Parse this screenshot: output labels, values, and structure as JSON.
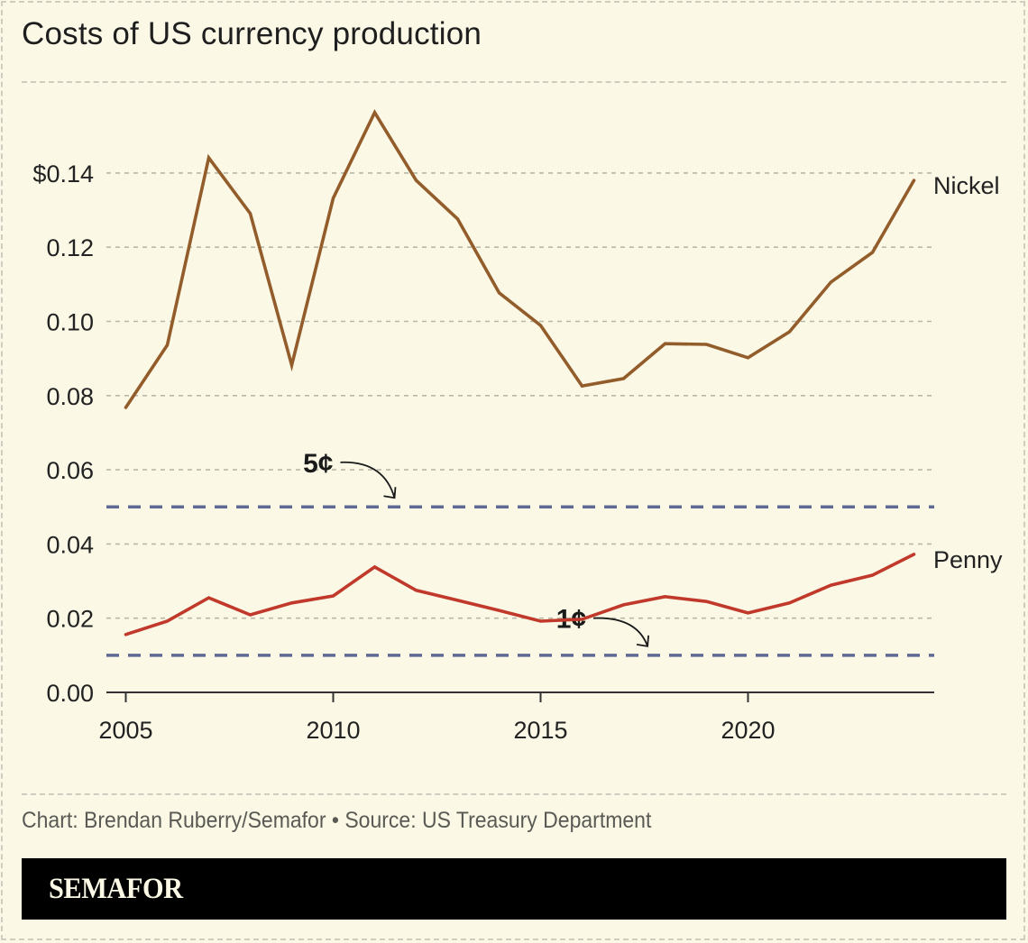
{
  "header": {
    "title": "Costs of US currency production"
  },
  "footer": {
    "credit": "Chart: Brendan Ruberry/Semafor • Source: US Treasury Department",
    "brand": "SEMAFOR"
  },
  "colors": {
    "background": "#fbf9e6",
    "nickel": "#935c2b",
    "penny": "#c0392b",
    "reference": "#5e6a94",
    "grid": "#b9b7a8",
    "axis": "#333333",
    "text": "#222222"
  },
  "chart_data": {
    "type": "line",
    "title": "Costs of US currency production",
    "xlabel": "",
    "ylabel": "",
    "x": [
      2005,
      2006,
      2007,
      2008,
      2009,
      2010,
      2011,
      2012,
      2013,
      2014,
      2015,
      2016,
      2017,
      2018,
      2019,
      2020,
      2021,
      2022,
      2023,
      2024
    ],
    "xlim": [
      2004.5,
      2024.5
    ],
    "ylim": [
      0,
      0.16
    ],
    "xticks": [
      2005,
      2010,
      2015,
      2020
    ],
    "xtick_labels": [
      "2005",
      "2010",
      "2015",
      "2020"
    ],
    "yticks": [
      0,
      0.02,
      0.04,
      0.06,
      0.08,
      0.1,
      0.12,
      0.14
    ],
    "ytick_labels": [
      "0.00",
      "0.02",
      "0.04",
      "0.06",
      "0.08",
      "0.10",
      "0.12",
      "$0.14"
    ],
    "grid": true,
    "legend": "direct labels at line ends (right)",
    "series": [
      {
        "name": "Nickel",
        "values": [
          0.0768,
          0.0936,
          0.1441,
          0.1291,
          0.0882,
          0.1332,
          0.1563,
          0.138,
          0.1276,
          0.1077,
          0.0989,
          0.0826,
          0.0846,
          0.094,
          0.0938,
          0.0902,
          0.0972,
          0.1106,
          0.1186,
          0.138
        ]
      },
      {
        "name": "Penny",
        "values": [
          0.0156,
          0.0192,
          0.0255,
          0.0209,
          0.0241,
          0.026,
          0.0338,
          0.0275,
          0.0248,
          0.0221,
          0.0192,
          0.0197,
          0.0236,
          0.0258,
          0.0245,
          0.0214,
          0.0241,
          0.0289,
          0.0316,
          0.0372
        ]
      }
    ],
    "reference_lines": [
      {
        "value": 0.05,
        "label": "5¢",
        "label_x": 2010.0,
        "label_y": 0.062
      },
      {
        "value": 0.01,
        "label": "1¢",
        "label_x": 2016.1,
        "label_y": 0.02
      }
    ]
  }
}
